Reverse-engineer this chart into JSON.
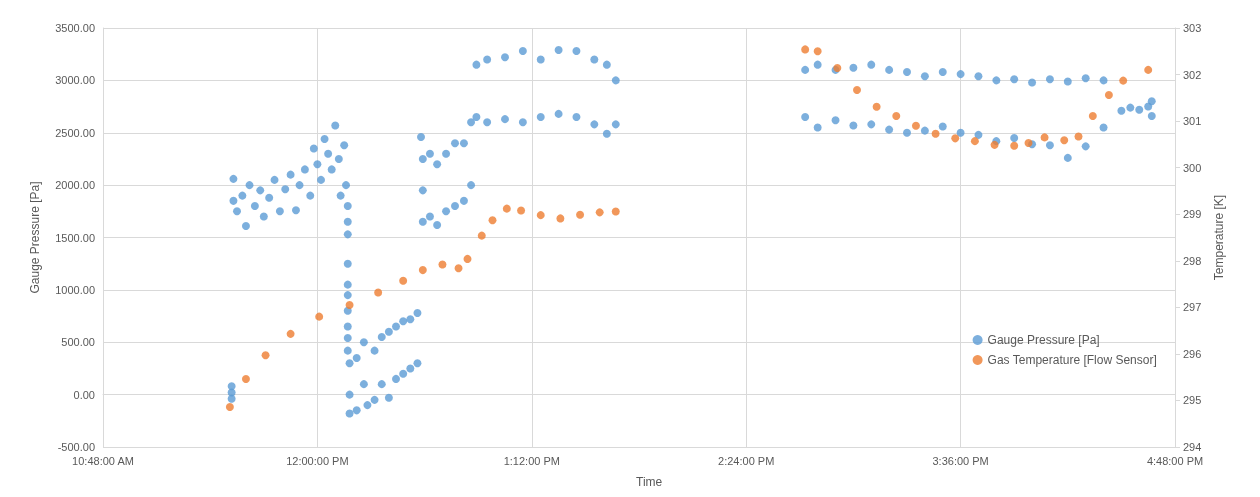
{
  "chart_data": {
    "type": "scatter",
    "xlabel": "Time",
    "ylabel": "Gauge Pressure [Pa]",
    "y2label": "Temperature [K]",
    "xlim": [
      10.8,
      16.8
    ],
    "xticks": [
      {
        "value": 10.8,
        "label": "10:48:00 AM"
      },
      {
        "value": 12,
        "label": "12:00:00 PM"
      },
      {
        "value": 13.2,
        "label": "1:12:00 PM"
      },
      {
        "value": 14.4,
        "label": "2:24:00 PM"
      },
      {
        "value": 15.6,
        "label": "3:36:00 PM"
      },
      {
        "value": 16.8,
        "label": "4:48:00 PM"
      }
    ],
    "ylim": [
      -500,
      3500
    ],
    "yticks": [
      {
        "value": -500,
        "label": "-500.00"
      },
      {
        "value": 0,
        "label": "0.00"
      },
      {
        "value": 500,
        "label": "500.00"
      },
      {
        "value": 1000,
        "label": "1000.00"
      },
      {
        "value": 1500,
        "label": "1500.00"
      },
      {
        "value": 2000,
        "label": "2000.00"
      },
      {
        "value": 2500,
        "label": "2500.00"
      },
      {
        "value": 3000,
        "label": "3000.00"
      },
      {
        "value": 3500,
        "label": "3500.00"
      }
    ],
    "y2lim": [
      294,
      303
    ],
    "y2ticks": [
      294,
      295,
      296,
      297,
      298,
      299,
      300,
      301,
      302,
      303
    ],
    "grid": true,
    "legend": "bottom right",
    "marker": "circle",
    "series": [
      {
        "name": "Gauge Pressure [Pa]",
        "color": "#5b9bd5",
        "x": [
          11.52,
          11.52,
          11.52,
          11.53,
          11.53,
          11.55,
          11.58,
          11.6,
          11.62,
          11.65,
          11.68,
          11.7,
          11.73,
          11.76,
          11.79,
          11.82,
          11.85,
          11.88,
          11.9,
          11.93,
          11.96,
          11.98,
          12.0,
          12.02,
          12.04,
          12.06,
          12.08,
          12.1,
          12.12,
          12.13,
          12.15,
          12.16,
          12.17,
          12.17,
          12.17,
          12.17,
          12.17,
          12.17,
          12.17,
          12.17,
          12.17,
          12.17,
          12.18,
          12.18,
          12.18,
          12.22,
          12.22,
          12.26,
          12.26,
          12.28,
          12.32,
          12.32,
          12.36,
          12.36,
          12.4,
          12.4,
          12.44,
          12.44,
          12.48,
          12.48,
          12.52,
          12.52,
          12.56,
          12.56,
          12.58,
          12.59,
          12.59,
          12.59,
          12.63,
          12.63,
          12.67,
          12.67,
          12.72,
          12.72,
          12.77,
          12.77,
          12.82,
          12.82,
          12.86,
          12.86,
          12.89,
          12.89,
          12.95,
          12.95,
          13.05,
          13.05,
          13.15,
          13.15,
          13.25,
          13.25,
          13.35,
          13.35,
          13.45,
          13.45,
          13.55,
          13.55,
          13.62,
          13.62,
          13.67,
          13.67,
          14.73,
          14.73,
          14.8,
          14.8,
          14.9,
          14.9,
          15.0,
          15.0,
          15.1,
          15.1,
          15.2,
          15.2,
          15.3,
          15.3,
          15.4,
          15.4,
          15.5,
          15.5,
          15.6,
          15.6,
          15.7,
          15.7,
          15.8,
          15.8,
          15.9,
          15.9,
          16.0,
          16.0,
          16.1,
          16.1,
          16.2,
          16.2,
          16.3,
          16.3,
          16.4,
          16.4,
          16.5,
          16.55,
          16.6,
          16.65,
          16.67,
          16.67
        ],
        "values": [
          80,
          20,
          -40,
          1850,
          2060,
          1750,
          1900,
          1610,
          2000,
          1800,
          1950,
          1700,
          1880,
          2050,
          1750,
          1960,
          2100,
          1760,
          2000,
          2150,
          1900,
          2350,
          2200,
          2050,
          2440,
          2300,
          2150,
          2570,
          2250,
          1900,
          2380,
          2000,
          1800,
          1650,
          1530,
          1250,
          1050,
          950,
          800,
          650,
          540,
          420,
          300,
          0,
          -180,
          350,
          -150,
          500,
          100,
          -100,
          420,
          -50,
          550,
          100,
          600,
          -30,
          650,
          150,
          700,
          200,
          720,
          250,
          780,
          300,
          2460,
          2250,
          1950,
          1650,
          2300,
          1700,
          2200,
          1620,
          2300,
          1750,
          2400,
          1800,
          2400,
          1850,
          2600,
          2000,
          3150,
          2650,
          3200,
          2600,
          3220,
          2630,
          3280,
          2600,
          3200,
          2650,
          3290,
          2680,
          3280,
          2650,
          3200,
          2580,
          3150,
          2490,
          3000,
          2580,
          3100,
          2650,
          3150,
          2550,
          3100,
          2620,
          3120,
          2570,
          3150,
          2580,
          3100,
          2530,
          3080,
          2500,
          3040,
          2520,
          3080,
          2560,
          3060,
          2500,
          3040,
          2480,
          3000,
          2420,
          3010,
          2450,
          2980,
          2390,
          3010,
          2380,
          2990,
          2260,
          3020,
          2370,
          3000,
          2550,
          2710,
          2740,
          2720,
          2750,
          2800,
          2660
        ]
      },
      {
        "name": "Gas Temperature [Flow Sensor]",
        "color": "#ed7d31",
        "axis": "y2",
        "x": [
          11.51,
          11.6,
          11.71,
          11.85,
          12.01,
          12.18,
          12.34,
          12.48,
          12.59,
          12.7,
          12.79,
          12.84,
          12.92,
          12.98,
          13.06,
          13.14,
          13.25,
          13.36,
          13.47,
          13.58,
          13.67,
          14.73,
          14.8,
          14.91,
          15.02,
          15.13,
          15.24,
          15.35,
          15.46,
          15.57,
          15.68,
          15.79,
          15.9,
          15.98,
          16.07,
          16.18,
          16.26,
          16.34,
          16.43,
          16.51,
          16.65
        ],
        "values": [
          294.86,
          295.46,
          295.97,
          296.43,
          296.8,
          297.05,
          297.32,
          297.57,
          297.8,
          297.92,
          297.84,
          298.04,
          298.54,
          298.87,
          299.12,
          299.08,
          298.98,
          298.91,
          298.99,
          299.04,
          299.06,
          302.54,
          302.5,
          302.14,
          301.67,
          301.31,
          301.11,
          300.9,
          300.73,
          300.63,
          300.57,
          300.49,
          300.47,
          300.53,
          300.65,
          300.59,
          300.67,
          301.11,
          301.56,
          301.87,
          302.1
        ]
      }
    ]
  }
}
